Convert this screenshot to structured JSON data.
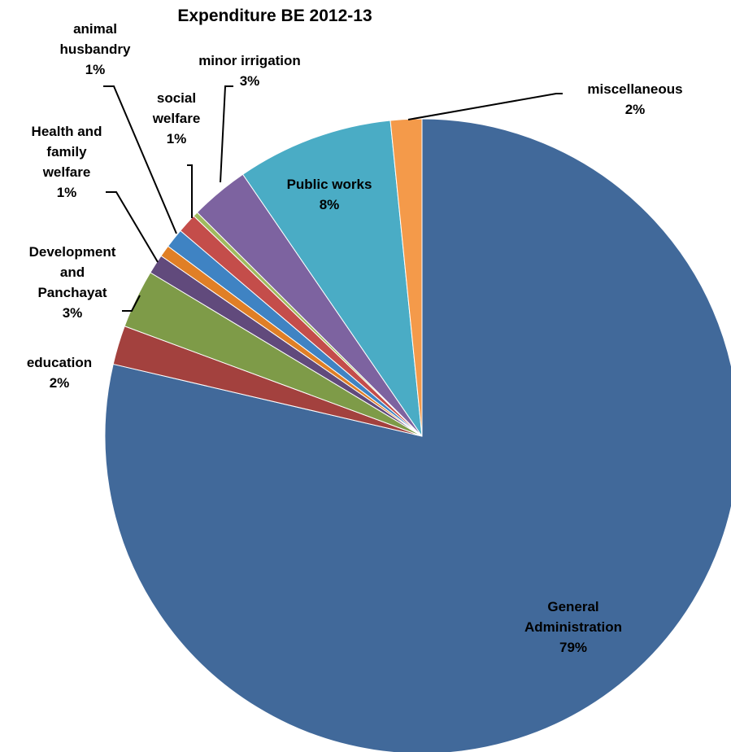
{
  "chart_data": {
    "type": "pie",
    "title": "Expenditure BE 2012-13",
    "start": "12 o'clock",
    "direction": "clockwise",
    "slices": [
      {
        "name": "General Administration",
        "value": 79,
        "label": "79%",
        "color": "#41699A"
      },
      {
        "name": "education",
        "value": 2,
        "label": "2%",
        "color": "#A3413E"
      },
      {
        "name": "Development and Panchayat",
        "value": 3,
        "label": "3%",
        "color": "#7E9B48"
      },
      {
        "name": "Health and family welfare",
        "value": 1,
        "label": "1%",
        "color": "#614A7C"
      },
      {
        "name": "",
        "value": 0.6,
        "label": "",
        "color": "#E07F26"
      },
      {
        "name": "animal husbandry",
        "value": 1,
        "label": "1%",
        "color": "#3F83C3"
      },
      {
        "name": "social welfare",
        "value": 1,
        "label": "1%",
        "color": "#C44D4A"
      },
      {
        "name": "",
        "value": 0.25,
        "label": "",
        "color": "#A0BB5E"
      },
      {
        "name": "minor irrigation",
        "value": 3,
        "label": "3%",
        "color": "#7D63A0"
      },
      {
        "name": "Public works",
        "value": 8,
        "label": "8%",
        "color": "#4AACC5"
      },
      {
        "name": "miscellaneous",
        "value": 1.6,
        "label": "2%",
        "color": "#F49A4A"
      }
    ]
  }
}
